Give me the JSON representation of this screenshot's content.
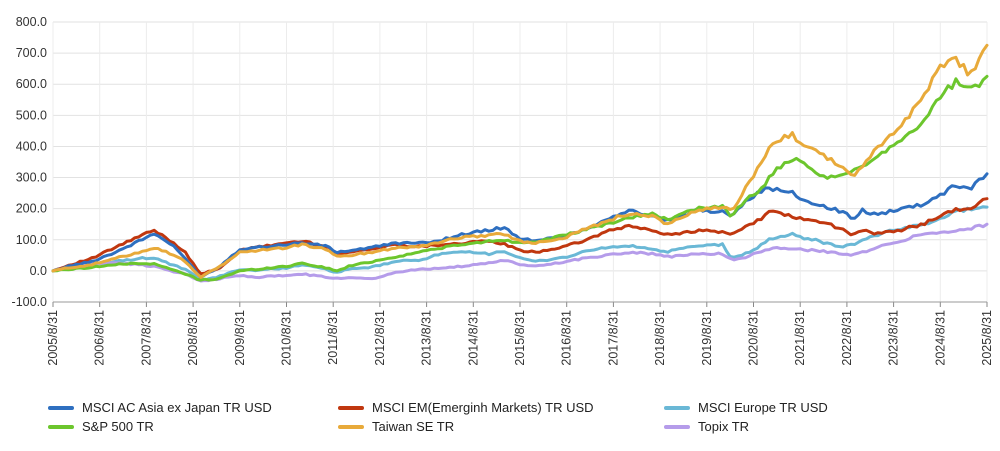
{
  "chart_data": {
    "type": "line",
    "title": "",
    "xlabel": "",
    "ylabel": "",
    "ylim": [
      -100,
      800
    ],
    "yticks": [
      -100,
      0,
      100,
      200,
      300,
      400,
      500,
      600,
      700,
      800
    ],
    "ytick_labels": [
      "-100.0",
      "0.0",
      "100.0",
      "200.0",
      "300.0",
      "400.0",
      "500.0",
      "600.0",
      "700.0",
      "800.0"
    ],
    "x_start": 2005.667,
    "x_end": 2025.667,
    "xtick_labels": [
      "2005/8/31",
      "2006/8/31",
      "2007/8/31",
      "2008/8/31",
      "2009/8/31",
      "2010/8/31",
      "2011/8/31",
      "2012/8/31",
      "2013/8/31",
      "2014/8/31",
      "2015/8/31",
      "2016/8/31",
      "2017/8/31",
      "2018/8/31",
      "2019/8/31",
      "2020/8/31",
      "2021/8/31",
      "2022/8/31",
      "2023/8/31",
      "2024/8/31",
      "2025/8/31"
    ],
    "grid": true,
    "legend_position": "bottom",
    "series": [
      {
        "name": "MSCI AC Asia ex Japan TR USD",
        "color": "#2e6fc0",
        "x": [
          2005.67,
          2006.0,
          2006.5,
          2007.0,
          2007.5,
          2007.83,
          2008.2,
          2008.5,
          2008.83,
          2009.2,
          2009.67,
          2010.0,
          2010.67,
          2011.0,
          2011.5,
          2011.75,
          2012.0,
          2012.5,
          2013.0,
          2013.5,
          2014.0,
          2014.5,
          2015.0,
          2015.3,
          2015.67,
          2016.0,
          2016.67,
          2017.0,
          2017.5,
          2018.0,
          2018.5,
          2018.8,
          2019.0,
          2019.5,
          2020.0,
          2020.2,
          2020.5,
          2020.8,
          2021.0,
          2021.2,
          2021.5,
          2021.7,
          2022.0,
          2022.3,
          2022.6,
          2022.8,
          2023.0,
          2023.3,
          2023.67,
          2024.0,
          2024.3,
          2024.67,
          2025.0,
          2025.3,
          2025.667
        ],
        "values": [
          0,
          15,
          30,
          60,
          95,
          120,
          85,
          40,
          -20,
          10,
          70,
          75,
          85,
          90,
          80,
          60,
          65,
          75,
          90,
          88,
          100,
          120,
          130,
          140,
          105,
          95,
          115,
          130,
          165,
          195,
          175,
          160,
          170,
          195,
          190,
          180,
          225,
          255,
          265,
          260,
          250,
          230,
          215,
          200,
          190,
          160,
          195,
          180,
          195,
          205,
          215,
          245,
          275,
          265,
          312
        ]
      },
      {
        "name": "MSCI EM(Emerginh Markets) TR USD",
        "color": "#c0370f",
        "x": [
          2005.67,
          2006.0,
          2006.5,
          2007.0,
          2007.5,
          2007.83,
          2008.2,
          2008.5,
          2008.83,
          2009.2,
          2009.67,
          2010.0,
          2010.67,
          2011.0,
          2011.5,
          2011.75,
          2012.0,
          2012.5,
          2013.0,
          2013.5,
          2014.0,
          2014.5,
          2015.0,
          2015.3,
          2015.67,
          2016.0,
          2016.67,
          2017.0,
          2017.5,
          2018.0,
          2018.5,
          2018.8,
          2019.0,
          2019.5,
          2020.0,
          2020.2,
          2020.5,
          2020.8,
          2021.0,
          2021.2,
          2021.5,
          2021.7,
          2022.0,
          2022.3,
          2022.6,
          2022.8,
          2023.0,
          2023.3,
          2023.67,
          2024.0,
          2024.3,
          2024.67,
          2025.0,
          2025.3,
          2025.667
        ],
        "values": [
          0,
          18,
          40,
          75,
          110,
          130,
          95,
          60,
          -10,
          5,
          65,
          75,
          90,
          95,
          80,
          55,
          62,
          70,
          85,
          78,
          85,
          90,
          95,
          88,
          65,
          60,
          80,
          95,
          125,
          145,
          130,
          115,
          120,
          130,
          125,
          115,
          145,
          165,
          190,
          185,
          175,
          165,
          160,
          150,
          130,
          115,
          130,
          120,
          125,
          140,
          150,
          180,
          195,
          200,
          232
        ]
      },
      {
        "name": "MSCI Europe TR USD",
        "color": "#6ab8d6",
        "x": [
          2005.67,
          2006.0,
          2006.5,
          2007.0,
          2007.5,
          2007.83,
          2008.2,
          2008.5,
          2008.83,
          2009.2,
          2009.67,
          2010.0,
          2010.67,
          2011.0,
          2011.5,
          2011.75,
          2012.0,
          2012.5,
          2013.0,
          2013.5,
          2014.0,
          2014.5,
          2015.0,
          2015.3,
          2015.67,
          2016.0,
          2016.67,
          2017.0,
          2017.5,
          2018.0,
          2018.5,
          2018.8,
          2019.0,
          2019.5,
          2020.0,
          2020.2,
          2020.5,
          2020.8,
          2021.0,
          2021.2,
          2021.5,
          2021.7,
          2022.0,
          2022.3,
          2022.6,
          2022.8,
          2023.0,
          2023.3,
          2023.67,
          2024.0,
          2024.3,
          2024.67,
          2025.0,
          2025.3,
          2025.667
        ],
        "values": [
          0,
          10,
          20,
          30,
          40,
          42,
          20,
          5,
          -30,
          -20,
          5,
          2,
          10,
          20,
          5,
          -5,
          5,
          12,
          30,
          35,
          55,
          60,
          55,
          65,
          40,
          30,
          45,
          60,
          75,
          80,
          70,
          60,
          68,
          80,
          85,
          40,
          55,
          80,
          100,
          110,
          118,
          105,
          100,
          85,
          78,
          85,
          100,
          115,
          130,
          140,
          150,
          170,
          190,
          200,
          205
        ]
      },
      {
        "name": "S&P 500 TR",
        "color": "#6cc62d",
        "x": [
          2005.67,
          2006.0,
          2006.5,
          2007.0,
          2007.5,
          2007.83,
          2008.2,
          2008.5,
          2008.83,
          2009.2,
          2009.67,
          2010.0,
          2010.67,
          2011.0,
          2011.5,
          2011.75,
          2012.0,
          2012.5,
          2013.0,
          2013.5,
          2014.0,
          2014.5,
          2015.0,
          2015.3,
          2015.67,
          2016.0,
          2016.67,
          2017.0,
          2017.5,
          2018.0,
          2018.5,
          2018.8,
          2019.0,
          2019.5,
          2020.0,
          2020.2,
          2020.5,
          2020.8,
          2021.0,
          2021.2,
          2021.5,
          2021.7,
          2022.0,
          2022.3,
          2022.6,
          2022.8,
          2023.0,
          2023.3,
          2023.67,
          2024.0,
          2024.3,
          2024.67,
          2025.0,
          2025.3,
          2025.667
        ],
        "values": [
          0,
          5,
          12,
          20,
          25,
          22,
          5,
          -10,
          -30,
          -25,
          0,
          5,
          15,
          25,
          10,
          0,
          15,
          30,
          45,
          60,
          75,
          85,
          95,
          100,
          90,
          95,
          115,
          130,
          150,
          170,
          185,
          165,
          175,
          200,
          210,
          175,
          230,
          255,
          300,
          330,
          360,
          345,
          310,
          300,
          305,
          320,
          340,
          365,
          410,
          440,
          480,
          560,
          610,
          575,
          625
        ]
      },
      {
        "name": "Taiwan SE TR",
        "color": "#e8aa3a",
        "x": [
          2005.67,
          2006.0,
          2006.5,
          2007.0,
          2007.5,
          2007.83,
          2008.2,
          2008.5,
          2008.83,
          2009.2,
          2009.67,
          2010.0,
          2010.67,
          2011.0,
          2011.5,
          2011.75,
          2012.0,
          2012.5,
          2013.0,
          2013.5,
          2014.0,
          2014.5,
          2015.0,
          2015.3,
          2015.67,
          2016.0,
          2016.67,
          2017.0,
          2017.5,
          2018.0,
          2018.5,
          2018.8,
          2019.0,
          2019.5,
          2020.0,
          2020.2,
          2020.5,
          2020.8,
          2021.0,
          2021.2,
          2021.5,
          2021.7,
          2022.0,
          2022.3,
          2022.6,
          2022.8,
          2023.0,
          2023.3,
          2023.67,
          2024.0,
          2024.3,
          2024.67,
          2025.0,
          2025.3,
          2025.667
        ],
        "values": [
          0,
          10,
          20,
          40,
          60,
          75,
          55,
          30,
          -20,
          10,
          60,
          65,
          75,
          85,
          70,
          45,
          50,
          60,
          75,
          78,
          95,
          110,
          115,
          120,
          95,
          90,
          110,
          130,
          160,
          185,
          175,
          150,
          165,
          195,
          205,
          190,
          265,
          340,
          400,
          420,
          440,
          410,
          385,
          360,
          330,
          300,
          340,
          390,
          440,
          500,
          570,
          650,
          680,
          630,
          725
        ]
      },
      {
        "name": "Topix TR",
        "color": "#b59cea",
        "x": [
          2005.67,
          2006.0,
          2006.5,
          2007.0,
          2007.5,
          2007.83,
          2008.2,
          2008.5,
          2008.83,
          2009.2,
          2009.67,
          2010.0,
          2010.67,
          2011.0,
          2011.5,
          2011.75,
          2012.0,
          2012.5,
          2013.0,
          2013.5,
          2014.0,
          2014.5,
          2015.0,
          2015.3,
          2015.67,
          2016.0,
          2016.67,
          2017.0,
          2017.5,
          2018.0,
          2018.5,
          2018.8,
          2019.0,
          2019.5,
          2020.0,
          2020.2,
          2020.5,
          2020.8,
          2021.0,
          2021.2,
          2021.5,
          2021.7,
          2022.0,
          2022.3,
          2022.6,
          2022.8,
          2023.0,
          2023.3,
          2023.67,
          2024.0,
          2024.3,
          2024.67,
          2025.0,
          2025.3,
          2025.667
        ],
        "values": [
          0,
          15,
          25,
          25,
          20,
          15,
          0,
          -10,
          -35,
          -25,
          -15,
          -20,
          -15,
          -10,
          -20,
          -25,
          -20,
          -25,
          -5,
          5,
          10,
          15,
          25,
          35,
          20,
          15,
          30,
          40,
          50,
          60,
          55,
          45,
          48,
          55,
          55,
          35,
          45,
          60,
          70,
          75,
          72,
          68,
          65,
          60,
          55,
          50,
          60,
          75,
          90,
          105,
          120,
          125,
          130,
          135,
          150
        ]
      }
    ]
  }
}
